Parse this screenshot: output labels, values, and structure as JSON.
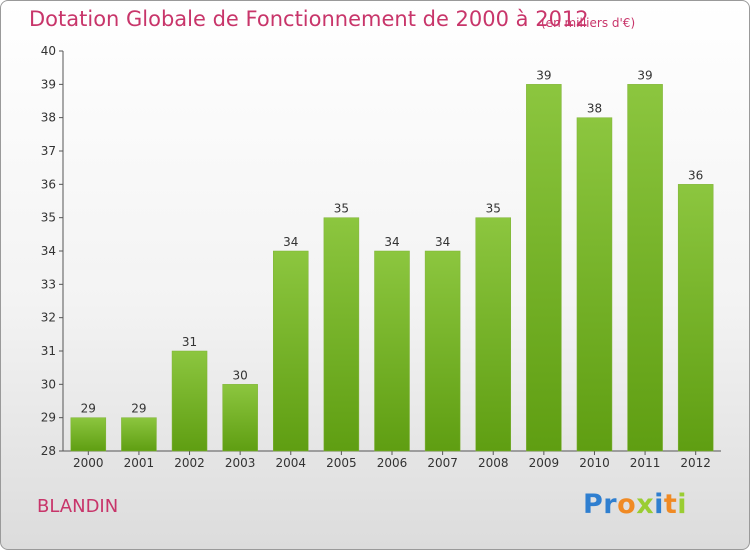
{
  "chart_data": {
    "type": "bar",
    "title": "Dotation Globale de Fonctionnement de 2000 à 2012",
    "unit": "(en milliers d'€)",
    "categories": [
      "2000",
      "2001",
      "2002",
      "2003",
      "2004",
      "2005",
      "2006",
      "2007",
      "2008",
      "2009",
      "2010",
      "2011",
      "2012"
    ],
    "values": [
      29,
      29,
      31,
      30,
      34,
      35,
      34,
      34,
      35,
      39,
      38,
      39,
      36
    ],
    "yticks": [
      28,
      29,
      30,
      31,
      32,
      33,
      34,
      35,
      36,
      37,
      38,
      39,
      40
    ],
    "ylim": [
      28,
      40
    ],
    "grid": false,
    "legend": "none",
    "bar_color": "#8cc63f",
    "bar_color_dark": "#5f9e12"
  },
  "commune": "BLANDIN",
  "logo": {
    "letters": [
      "P",
      "r",
      "o",
      "x",
      "i",
      "t",
      "i"
    ],
    "colors": [
      "#2f7fd0",
      "#2f7fd0",
      "#f08a24",
      "#9acd32",
      "#2f7fd0",
      "#f08a24",
      "#9acd32"
    ]
  }
}
